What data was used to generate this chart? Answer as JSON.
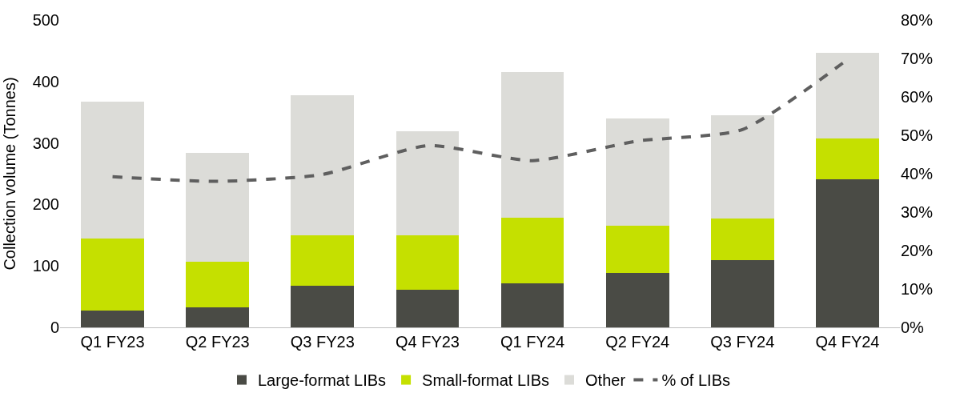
{
  "chart_data": {
    "type": "bar",
    "stacked": true,
    "ylabel": "Collection volume (Tonnes)",
    "categories": [
      "Q1 FY23",
      "Q2 FY23",
      "Q3 FY23",
      "Q4 FY23",
      "Q1 FY24",
      "Q2 FY24",
      "Q3 FY24",
      "Q4 FY24"
    ],
    "series": [
      {
        "name": "Large-format LIBs",
        "color": "#4a4b45",
        "values": [
          28,
          32,
          68,
          61,
          72,
          88,
          110,
          241
        ]
      },
      {
        "name": "Small-format LIBs",
        "color": "#c5e000",
        "values": [
          116,
          75,
          82,
          89,
          107,
          77,
          67,
          66
        ]
      },
      {
        "name": "Other",
        "color": "#dcdcd8",
        "values": [
          223,
          177,
          228,
          169,
          236,
          175,
          168,
          139
        ]
      },
      {
        "name": "% of LIBs",
        "color": "#5f5f5f",
        "type": "line",
        "axis": "y2",
        "line_style": "dashed",
        "values": [
          39.2,
          38.0,
          39.8,
          47.3,
          43.4,
          48.5,
          51.5,
          69.7
        ]
      }
    ],
    "ylim": [
      0,
      500
    ],
    "yticks": [
      0,
      100,
      200,
      300,
      400,
      500
    ],
    "y2lim": [
      0,
      80
    ],
    "y2ticks": [
      {
        "value": 0,
        "label": "0%"
      },
      {
        "value": 10,
        "label": "10%"
      },
      {
        "value": 20,
        "label": "20%"
      },
      {
        "value": 30,
        "label": "30%"
      },
      {
        "value": 40,
        "label": "40%"
      },
      {
        "value": 50,
        "label": "50%"
      },
      {
        "value": 60,
        "label": "60%"
      },
      {
        "value": 70,
        "label": "70%"
      },
      {
        "value": 80,
        "label": "80%"
      }
    ],
    "legend": "bottom"
  }
}
